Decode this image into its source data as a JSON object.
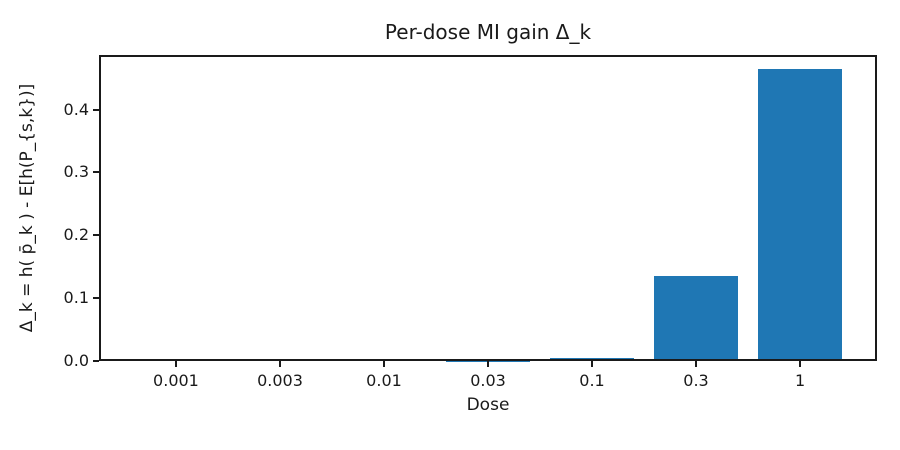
{
  "chart_data": {
    "type": "bar",
    "title": "Per-dose MI gain Δ_k",
    "xlabel": "Dose",
    "ylabel": "Δ_k = h( p̄_k ) - E[h(P_{s,k})]",
    "categories": [
      "0.001",
      "0.003",
      "0.01",
      "0.03",
      "0.1",
      "0.3",
      "1"
    ],
    "values": [
      0.003,
      0.003,
      0.003,
      0.0005,
      0.0045,
      0.135,
      0.464
    ],
    "ytick_labels": [
      "0.0",
      "0.1",
      "0.2",
      "0.3",
      "0.4"
    ],
    "yticks": [
      0.0,
      0.1,
      0.2,
      0.3,
      0.4
    ],
    "ylim": [
      0,
      0.487
    ],
    "bar_color": "#1f77b4",
    "grid": false,
    "legend": null,
    "colors": {
      "background": "#ffffff",
      "spine": "#1a1a1a",
      "text": "#1a1a1a"
    }
  }
}
